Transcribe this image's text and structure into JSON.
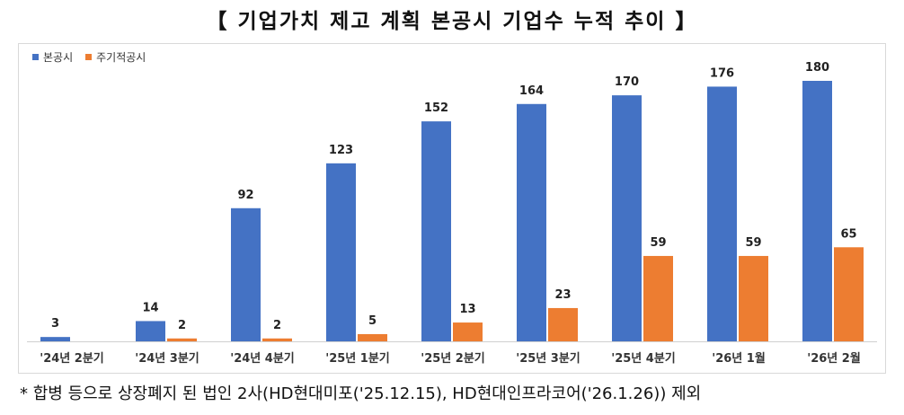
{
  "title": "【 기업가치 제고 계획 본공시 기업수 누적 추이 】",
  "footnote": "* 합병 등으로 상장폐지 된 법인 2사(HD현대미포('25.12.15), HD현대인프라코어('26.1.26)) 제외",
  "chart_data": {
    "type": "bar",
    "categories": [
      "'24년 2분기",
      "'24년 3분기",
      "'24년 4분기",
      "'25년 1분기",
      "'25년 2분기",
      "'25년 3분기",
      "'25년 4분기",
      "'26년 1월",
      "'26년 2월"
    ],
    "series": [
      {
        "name": "본공시",
        "color": "#4472C4",
        "values": [
          3,
          14,
          92,
          123,
          152,
          164,
          170,
          176,
          180
        ]
      },
      {
        "name": "주기적공시",
        "color": "#ED7D31",
        "values": [
          null,
          2,
          2,
          5,
          13,
          23,
          59,
          59,
          65
        ]
      }
    ],
    "legend_position": "top-left",
    "grid": false
  }
}
